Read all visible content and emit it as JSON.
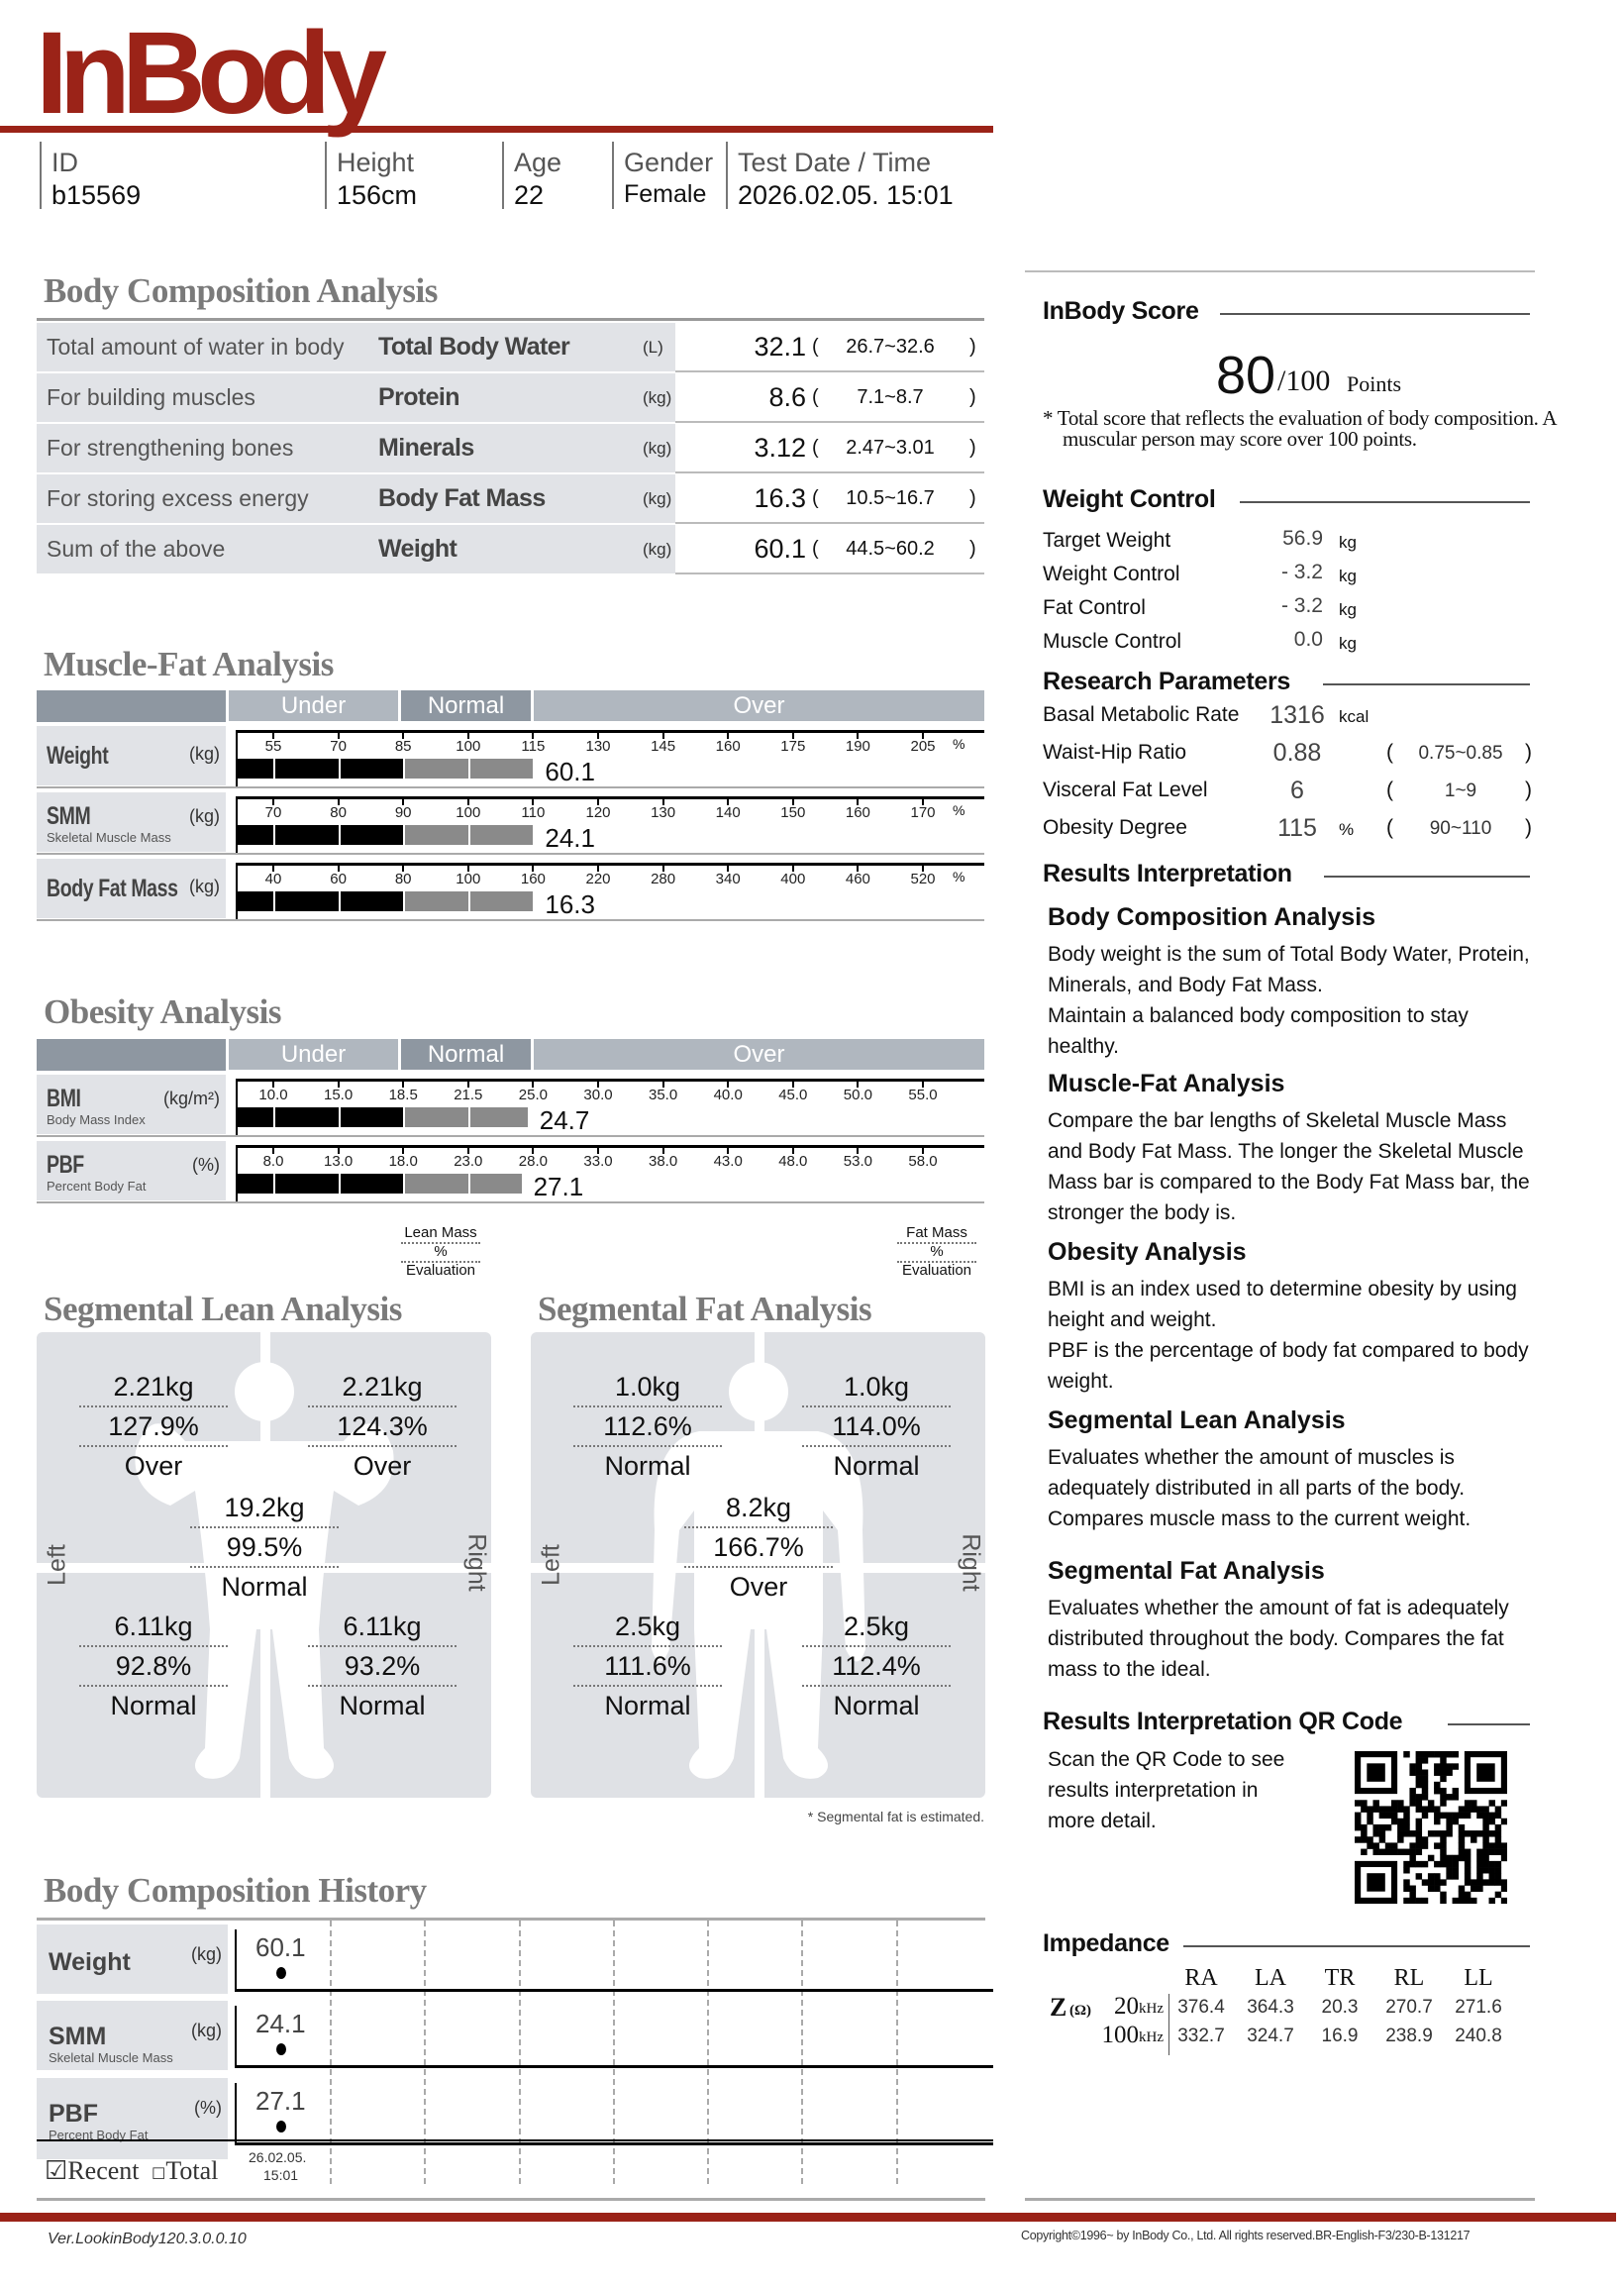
{
  "brand": {
    "logo_text": "InBody",
    "accent": "#9b2318"
  },
  "header": {
    "fields": [
      {
        "label": "ID",
        "value": "b15569"
      },
      {
        "label": "Height",
        "value": "156cm"
      },
      {
        "label": "Age",
        "value": "22"
      },
      {
        "label": "Gender",
        "value": "Female"
      },
      {
        "label": "Test Date / Time",
        "value": "2026.02.05. 15:01"
      }
    ]
  },
  "body_composition": {
    "title": "Body Composition Analysis",
    "rows": [
      {
        "desc": "Total amount of water in body",
        "name": "Total Body Water",
        "unit": "(L)",
        "value": "32.1",
        "range": "26.7~32.6"
      },
      {
        "desc": "For building muscles",
        "name": "Protein",
        "unit": "(kg)",
        "value": "8.6",
        "range": "7.1~8.7"
      },
      {
        "desc": "For strengthening bones",
        "name": "Minerals",
        "unit": "(kg)",
        "value": "3.12",
        "range": "2.47~3.01"
      },
      {
        "desc": "For storing excess energy",
        "name": "Body Fat Mass",
        "unit": "(kg)",
        "value": "16.3",
        "range": "10.5~16.7"
      },
      {
        "desc": "Sum of the above",
        "name": "Weight",
        "unit": "(kg)",
        "value": "60.1",
        "range": "44.5~60.2"
      }
    ]
  },
  "muscle_fat": {
    "title": "Muscle-Fat Analysis",
    "bands": [
      "Under",
      "Normal",
      "Over"
    ],
    "rows": [
      {
        "name": "Weight",
        "sub": "",
        "unit": "(kg)",
        "ticks": [
          "55",
          "70",
          "85",
          "100",
          "115",
          "130",
          "145",
          "160",
          "175",
          "190",
          "205"
        ],
        "pct_label": "%",
        "bar_level": 115,
        "value": "60.1"
      },
      {
        "name": "SMM",
        "sub": "Skeletal Muscle Mass",
        "unit": "(kg)",
        "ticks": [
          "70",
          "80",
          "90",
          "100",
          "110",
          "120",
          "130",
          "140",
          "150",
          "160",
          "170"
        ],
        "pct_label": "%",
        "bar_level": 110,
        "value": "24.1"
      },
      {
        "name": "Body Fat Mass",
        "sub": "",
        "unit": "(kg)",
        "ticks": [
          "40",
          "60",
          "80",
          "100",
          "160",
          "220",
          "280",
          "340",
          "400",
          "460",
          "520"
        ],
        "pct_label": "%",
        "bar_level": 160,
        "value": "16.3"
      }
    ]
  },
  "obesity": {
    "title": "Obesity Analysis",
    "bands": [
      "Under",
      "Normal",
      "Over"
    ],
    "rows": [
      {
        "name": "BMI",
        "sub": "Body Mass Index",
        "unit": "(kg/m²)",
        "ticks": [
          "10.0",
          "15.0",
          "18.5",
          "21.5",
          "25.0",
          "30.0",
          "35.0",
          "40.0",
          "45.0",
          "50.0",
          "55.0"
        ],
        "pct_label": "",
        "bar_level": 24.7,
        "value": "24.7"
      },
      {
        "name": "PBF",
        "sub": "Percent Body Fat",
        "unit": "(%)",
        "ticks": [
          "8.0",
          "13.0",
          "18.0",
          "23.0",
          "28.0",
          "33.0",
          "38.0",
          "43.0",
          "48.0",
          "53.0",
          "58.0"
        ],
        "pct_label": "",
        "bar_level": 27.1,
        "value": "27.1"
      }
    ]
  },
  "segmental_lean": {
    "title": "Segmental Lean Analysis",
    "legend": [
      "Lean Mass",
      "%",
      "Evaluation"
    ],
    "left_label": "Left",
    "right_label": "Right",
    "left_arm": [
      "2.21kg",
      "127.9%",
      "Over"
    ],
    "right_arm": [
      "2.21kg",
      "124.3%",
      "Over"
    ],
    "trunk": [
      "19.2kg",
      "99.5%",
      "Normal"
    ],
    "left_leg": [
      "6.11kg",
      "92.8%",
      "Normal"
    ],
    "right_leg": [
      "6.11kg",
      "93.2%",
      "Normal"
    ]
  },
  "segmental_fat": {
    "title": "Segmental Fat Analysis",
    "legend": [
      "Fat Mass",
      "%",
      "Evaluation"
    ],
    "left_label": "Left",
    "right_label": "Right",
    "left_arm": [
      "1.0kg",
      "112.6%",
      "Normal"
    ],
    "right_arm": [
      "1.0kg",
      "114.0%",
      "Normal"
    ],
    "trunk": [
      "8.2kg",
      "166.7%",
      "Over"
    ],
    "left_leg": [
      "2.5kg",
      "111.6%",
      "Normal"
    ],
    "right_leg": [
      "2.5kg",
      "112.4%",
      "Normal"
    ],
    "footnote": "* Segmental fat is estimated."
  },
  "history": {
    "title": "Body Composition History",
    "rows": [
      {
        "name": "Weight",
        "sub": "",
        "unit": "(kg)",
        "value": "60.1"
      },
      {
        "name": "SMM",
        "sub": "Skeletal Muscle Mass",
        "unit": "(kg)",
        "value": "24.1"
      },
      {
        "name": "PBF",
        "sub": "Percent Body Fat",
        "unit": "(%)",
        "value": "27.1"
      }
    ],
    "recent_label": "Recent",
    "total_label": "Total",
    "recent_checked": true,
    "date": "26.02.05.",
    "time": "15:01"
  },
  "score": {
    "heading": "InBody Score",
    "value": "80",
    "max": "/100",
    "unit": "Points",
    "note": "* Total score that reflects the evaluation of body composition. A muscular person may score over 100 points."
  },
  "weight_control": {
    "heading": "Weight Control",
    "rows": [
      {
        "label": "Target Weight",
        "value": "56.9",
        "unit": "kg"
      },
      {
        "label": "Weight Control",
        "value": "- 3.2",
        "unit": "kg"
      },
      {
        "label": "Fat Control",
        "value": "- 3.2",
        "unit": "kg"
      },
      {
        "label": "Muscle Control",
        "value": "0.0",
        "unit": "kg"
      }
    ]
  },
  "research": {
    "heading": "Research Parameters",
    "rows": [
      {
        "label": "Basal Metabolic Rate",
        "value": "1316",
        "unit": "kcal",
        "range": ""
      },
      {
        "label": "Waist-Hip Ratio",
        "value": "0.88",
        "unit": "",
        "range": "0.75~0.85"
      },
      {
        "label": "Visceral Fat Level",
        "value": "6",
        "unit": "",
        "range": "1~9"
      },
      {
        "label": "Obesity Degree",
        "value": "115",
        "unit": "%",
        "range": "90~110"
      }
    ]
  },
  "interpretation": {
    "heading": "Results Interpretation",
    "sections": [
      {
        "title": "Body Composition Analysis",
        "lines": [
          "Body weight is the sum of Total Body Water, Protein,",
          "Minerals, and Body Fat Mass.",
          "Maintain a balanced body composition to stay",
          "healthy."
        ]
      },
      {
        "title": "Muscle-Fat Analysis",
        "lines": [
          "Compare the bar lengths of Skeletal Muscle Mass",
          "and Body Fat Mass. The longer the Skeletal Muscle",
          "Mass bar is compared to the Body Fat Mass bar, the",
          "stronger the body is."
        ]
      },
      {
        "title": "Obesity Analysis",
        "lines": [
          "BMI is an index used to determine obesity by using",
          "height and weight.",
          "PBF is the percentage of body fat compared to body",
          "weight."
        ]
      },
      {
        "title": "Segmental Lean Analysis",
        "lines": [
          "Evaluates whether the amount of muscles is",
          "adequately distributed in all parts of the body.",
          "Compares muscle mass to the current weight."
        ]
      },
      {
        "title": "Segmental Fat Analysis",
        "lines": [
          "Evaluates whether the amount of fat is adequately",
          "distributed throughout the body. Compares the fat",
          "mass to the ideal."
        ]
      }
    ]
  },
  "qr": {
    "heading": "Results Interpretation QR Code",
    "lines": [
      "Scan the QR Code to see",
      "results interpretation in",
      "more detail."
    ]
  },
  "impedance": {
    "heading": "Impedance",
    "z_label": "Z",
    "ohm": "(Ω)",
    "columns": [
      "RA",
      "LA",
      "TR",
      "RL",
      "LL"
    ],
    "rows": [
      {
        "freq": "20",
        "unit": "kHz",
        "values": [
          "376.4",
          "364.3",
          "20.3",
          "270.7",
          "271.6"
        ]
      },
      {
        "freq": "100",
        "unit": "kHz",
        "values": [
          "332.7",
          "324.7",
          "16.9",
          "238.9",
          "240.8"
        ]
      }
    ]
  },
  "footer": {
    "version": "Ver.LookinBody120.3.0.0.10",
    "copyright": "Copyright©1996~ by InBody Co., Ltd. All rights reserved.BR-English-F3/230-B-131217"
  }
}
